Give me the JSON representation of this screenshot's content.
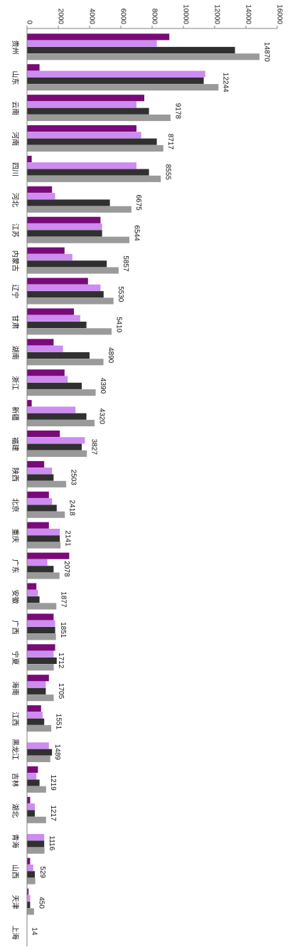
{
  "chart_data": {
    "type": "bar",
    "orientation": "horizontal",
    "title": "",
    "xlabel": "",
    "ylabel": "",
    "xlim": [
      0,
      16000
    ],
    "ticks": [
      "0",
      "2000",
      "4000",
      "6000",
      "8000",
      "10000",
      "12000",
      "14000",
      "16000"
    ],
    "tick_values": [
      0,
      2000,
      4000,
      6000,
      8000,
      10000,
      12000,
      14000,
      16000
    ],
    "grid": false,
    "legend": "none",
    "categories": [
      "贵州",
      "山东",
      "云南",
      "河南",
      "四川",
      "河北",
      "江苏",
      "内蒙古",
      "辽宁",
      "甘肃",
      "湖南",
      "浙江",
      "新疆",
      "福建",
      "陕西",
      "北京",
      "重庆",
      "广东",
      "安徽",
      "广西",
      "宁夏",
      "海南",
      "江西",
      "黑龙江",
      "吉林",
      "湖北",
      "青海",
      "山西",
      "天津",
      "上海"
    ],
    "series_colors": [
      "#7a0a7a",
      "#cc8cf0",
      "#303030",
      "#9a9a9a"
    ],
    "series": [
      {
        "values": [
          9100,
          800,
          7500,
          7000,
          300,
          1600,
          4700,
          2400,
          3900,
          3000,
          1700,
          2400,
          300,
          2100,
          1100,
          1400,
          1400,
          2700,
          600,
          1700,
          1800,
          1400,
          900,
          0,
          700,
          200,
          0,
          200,
          100,
          0
        ]
      },
      {
        "values": [
          8300,
          11400,
          7000,
          7300,
          7000,
          1800,
          4800,
          2900,
          4700,
          3400,
          2300,
          2600,
          3100,
          3700,
          1600,
          1600,
          2100,
          1300,
          700,
          1800,
          1700,
          1200,
          1000,
          1400,
          600,
          500,
          1100,
          400,
          200,
          0
        ]
      },
      {
        "values": [
          13300,
          11300,
          7800,
          8300,
          7800,
          5300,
          4800,
          5100,
          4900,
          3800,
          4000,
          3500,
          3800,
          3500,
          1700,
          1900,
          2100,
          1700,
          800,
          1800,
          1900,
          1200,
          1100,
          1600,
          800,
          500,
          1100,
          500,
          200,
          0
        ]
      },
      {
        "values": [
          14870,
          12244,
          9178,
          8717,
          8555,
          6675,
          6544,
          5857,
          5530,
          5410,
          4890,
          4390,
          4320,
          3827,
          2503,
          2418,
          2141,
          2078,
          1877,
          1851,
          1712,
          1705,
          1551,
          1489,
          1219,
          1217,
          1116,
          529,
          450,
          14
        ]
      }
    ],
    "data_labels": [
      "14870",
      "12244",
      "9178",
      "8717",
      "8555",
      "6675",
      "6544",
      "5857",
      "5530",
      "5410",
      "4890",
      "4390",
      "4320",
      "3827",
      "2503",
      "2418",
      "2141",
      "2078",
      "1877",
      "1851",
      "1712",
      "1705",
      "1551",
      "1489",
      "1219",
      "1217",
      "1116",
      "529",
      "450",
      "14"
    ]
  }
}
